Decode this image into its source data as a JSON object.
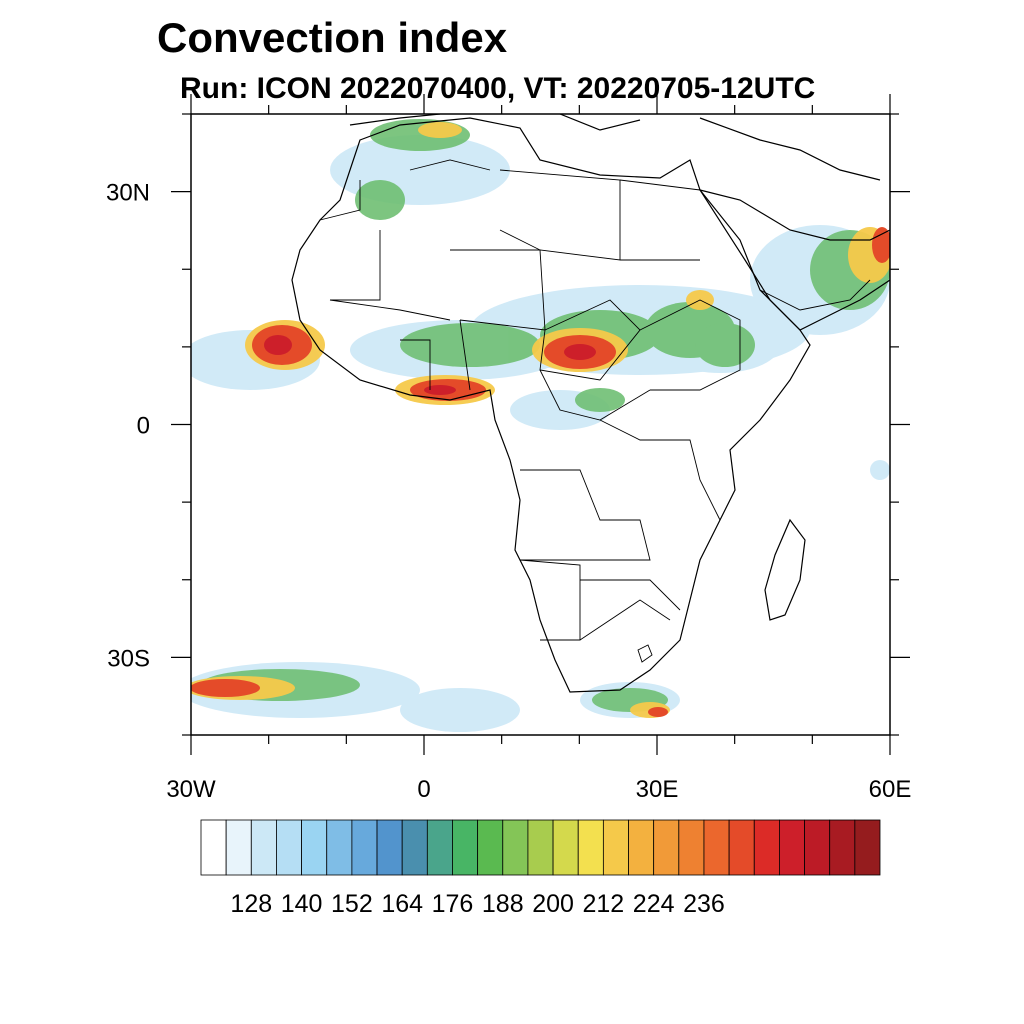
{
  "title": "Convection index",
  "subtitle": "Run: ICON 2022070400,  VT: 20220705-12UTC",
  "map": {
    "lon_range": [
      -30,
      60
    ],
    "lat_range": [
      -40,
      40
    ],
    "lat_tick_labels": [
      {
        "lat": 30,
        "text": "30N"
      },
      {
        "lat": 0,
        "text": "0"
      },
      {
        "lat": -30,
        "text": "30S"
      }
    ],
    "lon_tick_labels": [
      {
        "lon": -30,
        "text": "30W"
      },
      {
        "lon": 0,
        "text": "0"
      },
      {
        "lon": 30,
        "text": "30E"
      },
      {
        "lon": 60,
        "text": "60E"
      }
    ],
    "minor_lat_ticks": [
      40,
      20,
      10,
      -10,
      -20,
      -40
    ],
    "minor_lon_ticks": [
      -20,
      -10,
      10,
      20,
      40,
      50
    ],
    "convection_areas": [
      {
        "region": "west-africa-atlantic",
        "lon": -17,
        "lat": 11,
        "peak": 230
      },
      {
        "region": "gulf-of-guinea",
        "lon": 3,
        "lat": 4.5,
        "peak": 228
      },
      {
        "region": "central-african-republic",
        "lon": 20,
        "lat": 10,
        "peak": 230
      },
      {
        "region": "sahel-central",
        "lon": 5,
        "lat": 11,
        "peak": 180
      },
      {
        "region": "ethiopia",
        "lon": 38,
        "lat": 10,
        "peak": 185
      },
      {
        "region": "arabian-peninsula",
        "lon": 57,
        "lat": 23,
        "peak": 225
      },
      {
        "region": "northwest-africa",
        "lon": -5,
        "lat": 33,
        "peak": 180
      },
      {
        "region": "south-atlantic",
        "lon": -22,
        "lat": -34,
        "peak": 226
      },
      {
        "region": "southern-ocean",
        "lon": 25,
        "lat": -36,
        "peak": 210
      },
      {
        "region": "congo-basin",
        "lon": 27,
        "lat": 3,
        "peak": 190
      }
    ]
  },
  "colorbar": {
    "colors": [
      "#ffffff",
      "#e8f4fb",
      "#cce8f6",
      "#b5def4",
      "#9ad4f2",
      "#7fbde6",
      "#67a9dc",
      "#5294cd",
      "#4a8fae",
      "#4aa58b",
      "#48b565",
      "#5aba50",
      "#84c557",
      "#a8cc4e",
      "#d4d94c",
      "#f3e04f",
      "#f5c94a",
      "#f3b13f",
      "#f19a38",
      "#ee8131",
      "#eb672d",
      "#e44b29",
      "#dc2b27",
      "#cd1f2a",
      "#bc1b26",
      "#a81b22",
      "#951c1e"
    ],
    "labels": [
      "128",
      "140",
      "152",
      "164",
      "176",
      "188",
      "200",
      "212",
      "224",
      "236"
    ],
    "label_start_index": 2,
    "label_every": 2
  }
}
